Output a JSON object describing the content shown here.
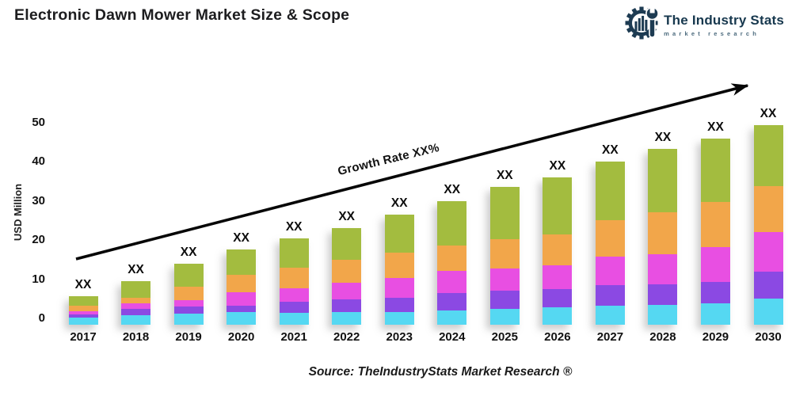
{
  "header": {
    "title": "Electronic Dawn Mower Market Size & Scope"
  },
  "logo": {
    "name": "The Industry Stats",
    "tagline": "market research",
    "color": "#1d3b52",
    "icon": "gear-barchart-wrench"
  },
  "chart_data": {
    "type": "bar",
    "subtype": "stacked-vertical",
    "title": "Electronic Dawn Mower Market Size & Scope",
    "xlabel": "",
    "ylabel": "USD Million",
    "yticks": [
      0,
      10,
      20,
      30,
      40,
      50
    ],
    "ylim": [
      0,
      55
    ],
    "grid": false,
    "legend": "none",
    "bar_label": "XX",
    "categories": [
      "2017",
      "2018",
      "2019",
      "2020",
      "2021",
      "2022",
      "2023",
      "2024",
      "2025",
      "2026",
      "2027",
      "2028",
      "2029",
      "2030"
    ],
    "series": [
      {
        "name": "segment-cyan",
        "color": "#55d8f2",
        "values": [
          0.7,
          1.3,
          1.7,
          2.0,
          1.8,
          2.0,
          2.1,
          2.5,
          2.8,
          3.3,
          3.6,
          3.9,
          4.3,
          5.5
        ]
      },
      {
        "name": "segment-purple",
        "color": "#8b49e3",
        "values": [
          0.7,
          1.6,
          1.7,
          1.7,
          2.8,
          3.3,
          3.6,
          4.3,
          4.6,
          4.6,
          5.4,
          5.3,
          5.5,
          6.9
        ]
      },
      {
        "name": "segment-magenta",
        "color": "#e84fe2",
        "values": [
          0.9,
          1.3,
          1.6,
          3.3,
          3.5,
          4.3,
          5.1,
          5.7,
          5.7,
          6.1,
          7.2,
          7.6,
          8.8,
          10.1
        ]
      },
      {
        "name": "segment-orange",
        "color": "#f2a64a",
        "values": [
          1.3,
          1.4,
          3.6,
          4.6,
          5.3,
          5.8,
          6.5,
          6.5,
          7.6,
          8.0,
          9.4,
          10.8,
          11.7,
          11.7
        ]
      },
      {
        "name": "segment-green",
        "color": "#a3bc3f",
        "values": [
          2.4,
          4.4,
          5.8,
          6.4,
          7.5,
          8.2,
          9.7,
          11.5,
          13.3,
          14.5,
          15.0,
          16.3,
          16.2,
          15.8
        ]
      }
    ],
    "totals_approx": [
      6,
      10,
      14.5,
      18,
      21,
      23.5,
      27,
      30.5,
      34,
      36.5,
      40.5,
      44,
      46.5,
      50
    ],
    "annotation": {
      "text": "Growth Rate XX%"
    },
    "source": "Source: TheIndustryStats Market Research ®"
  }
}
